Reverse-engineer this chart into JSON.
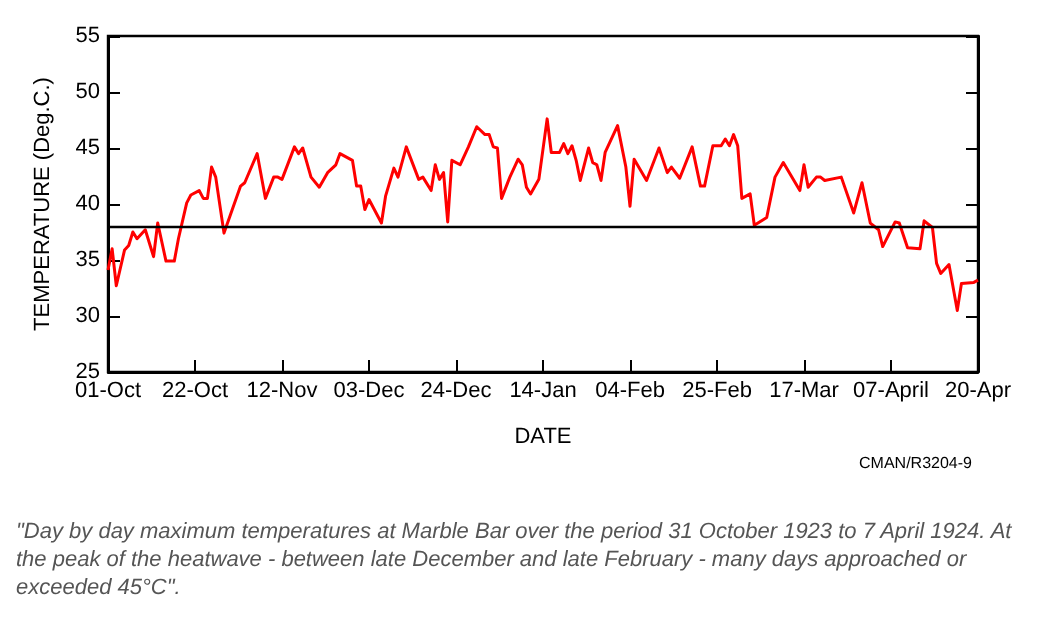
{
  "chart_data": {
    "type": "line",
    "xlabel": "DATE",
    "ylabel": "TEMPERATURE (Deg.C.)",
    "annotations": [
      "CMAN/R3204-9",
      "\"Day by day maximum temperatures at Marble Bar over the period 31 October 1923 to 7 April 1924. At the peak of the heatwave - between late December and late February - many days approached or exceeded 45°C\"."
    ],
    "categories": [
      "01-Oct",
      null,
      null,
      null,
      null,
      null,
      null,
      null,
      null,
      null,
      null,
      null,
      null,
      null,
      null,
      null,
      null,
      null,
      null,
      null,
      null,
      "22-Oct",
      null,
      null,
      null,
      null,
      null,
      null,
      null,
      null,
      null,
      null,
      null,
      null,
      null,
      null,
      null,
      null,
      null,
      null,
      null,
      null,
      "12-Nov",
      null,
      null,
      null,
      null,
      null,
      null,
      null,
      null,
      null,
      null,
      null,
      null,
      null,
      null,
      null,
      null,
      null,
      null,
      null,
      null,
      "03-Dec",
      null,
      null,
      null,
      null,
      null,
      null,
      null,
      null,
      null,
      null,
      null,
      null,
      null,
      null,
      null,
      null,
      null,
      null,
      null,
      null,
      "24-Dec",
      null,
      null,
      null,
      null,
      null,
      null,
      null,
      null,
      null,
      null,
      null,
      null,
      null,
      null,
      null,
      null,
      null,
      null,
      null,
      null,
      "14-Jan",
      null,
      null,
      null,
      null,
      null,
      null,
      null,
      null,
      null,
      null,
      null,
      null,
      null,
      null,
      null,
      null,
      null,
      null,
      null,
      null,
      "04-Feb",
      null,
      null,
      null,
      null,
      null,
      null,
      null,
      null,
      null,
      null,
      null,
      null,
      null,
      null,
      null,
      null,
      null,
      null,
      null,
      null,
      "25-Feb",
      null,
      null,
      null,
      null,
      null,
      null,
      null,
      null,
      null,
      null,
      null,
      null,
      null,
      null,
      null,
      null,
      null,
      null,
      null,
      null,
      "17-Mar",
      null,
      null,
      null,
      null,
      null,
      null,
      null,
      null,
      null,
      null,
      null,
      null,
      null,
      null,
      null,
      null,
      null,
      null,
      null,
      null,
      "07-April",
      null,
      null,
      null,
      null,
      null,
      null,
      null,
      null,
      null,
      null,
      null,
      null,
      null,
      null,
      null,
      null,
      null,
      null,
      null,
      null,
      "20-Apr"
    ],
    "series": [
      {
        "color": "#ff0000",
        "values": [
          34.1,
          36,
          32.7,
          null,
          35.9,
          36.3,
          37.5,
          36.9,
          null,
          37.7,
          null,
          35.3,
          38.3,
          null,
          34.9,
          null,
          34.9,
          36.9,
          null,
          40.1,
          40.8,
          null,
          41.2,
          40.5,
          40.5,
          43.3,
          42.4,
          null,
          37.4,
          null,
          39.5,
          null,
          41.6,
          41.9,
          null,
          null,
          44.5,
          null,
          40.5,
          null,
          42.4,
          42.4,
          42.2,
          null,
          null,
          45.1,
          44.5,
          45,
          null,
          42.4,
          null,
          41.5,
          null,
          42.8,
          null,
          43.5,
          44.5,
          null,
          null,
          43.9,
          41.6,
          41.6,
          39.5,
          40.4,
          null,
          null,
          38.3,
          40.7,
          null,
          43.2,
          42.4,
          null,
          45.1,
          null,
          null,
          42.2,
          42.4,
          null,
          41.2,
          43.5,
          42.2,
          42.8,
          38.4,
          43.9,
          null,
          43.5,
          null,
          45.1,
          null,
          46.9,
          null,
          46.2,
          46.2,
          45.1,
          45,
          40.5,
          null,
          42.4,
          null,
          44,
          43.5,
          41.5,
          40.9,
          null,
          42.2,
          null,
          47.6,
          44.6,
          null,
          44.6,
          45.4,
          44.5,
          45.2,
          43.9,
          42.1,
          null,
          45,
          43.7,
          43.5,
          42.1,
          44.6,
          null,
          null,
          47,
          null,
          43.3,
          39.8,
          44,
          null,
          null,
          42.1,
          null,
          null,
          45,
          null,
          42.8,
          43.3,
          null,
          42.3,
          null,
          null,
          45.1,
          null,
          41.6,
          41.6,
          null,
          45.2,
          null,
          45.2,
          45.8,
          45.2,
          46.2,
          45.2,
          40.5,
          null,
          40.9,
          38.1,
          null,
          null,
          38.8,
          null,
          42.4,
          null,
          43.7,
          null,
          null,
          null,
          41.2,
          43.5,
          41.5,
          null,
          42.4,
          42.4,
          42.1,
          null,
          null,
          null,
          42.4,
          null,
          null,
          39.2,
          null,
          41.9,
          null,
          38.3,
          null,
          37.7,
          36.2,
          null,
          null,
          38.4,
          38.3,
          null,
          36.1,
          null,
          null,
          36,
          38.5,
          null,
          37.9,
          34.7,
          33.8,
          null,
          34.6,
          null,
          30.5,
          32.9,
          null,
          null,
          33,
          33.2
        ]
      }
    ],
    "ylim": [
      25,
      55
    ],
    "yticks": [
      25,
      30,
      35,
      40,
      45,
      50,
      55
    ],
    "ref_lines": [
      {
        "axis": "y",
        "value": 38,
        "color": "#000000"
      }
    ],
    "grid": false,
    "marker": "none",
    "line_style": "solid"
  }
}
